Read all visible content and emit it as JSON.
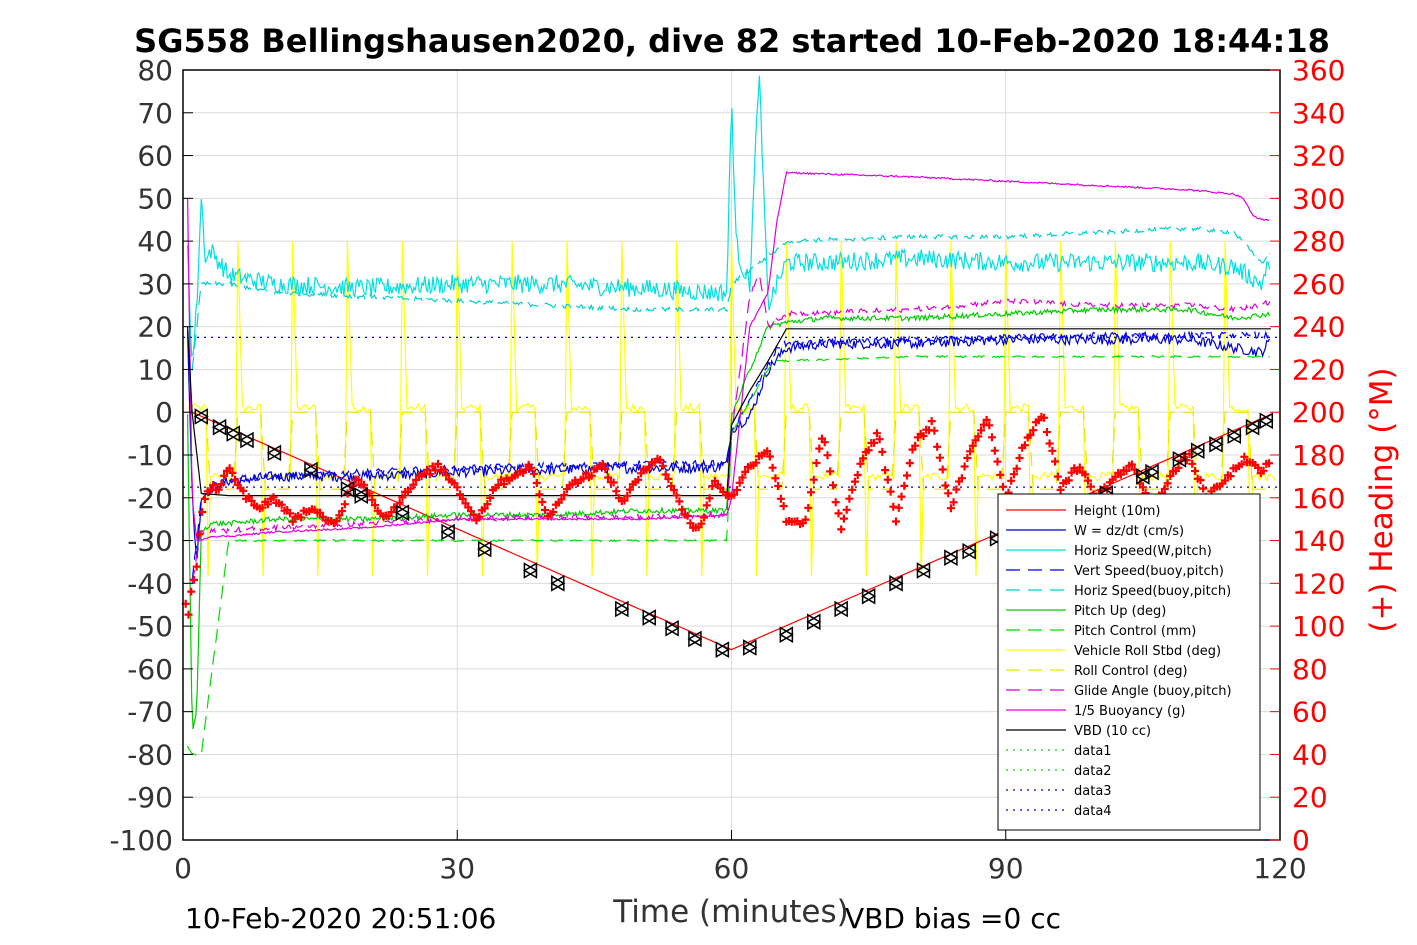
{
  "chart_data": {
    "type": "line",
    "title": "SG558 Bellingshausen2020, dive 82 started 10-Feb-2020 18:44:18",
    "xlabel": "Time (minutes)",
    "ylabel": "",
    "y2label": "(+) Heading (°M)",
    "xlim": [
      0,
      120
    ],
    "ylim": [
      -100,
      80
    ],
    "y2lim": [
      0,
      360
    ],
    "x_ticks": [
      "0",
      "30",
      "60",
      "90",
      "120"
    ],
    "y_ticks": [
      "80",
      "70",
      "60",
      "50",
      "40",
      "30",
      "20",
      "10",
      "0",
      "-10",
      "-20",
      "-30",
      "-40",
      "-50",
      "-60",
      "-70",
      "-80",
      "-90",
      "-100"
    ],
    "y2_ticks": [
      "360",
      "340",
      "320",
      "300",
      "280",
      "260",
      "240",
      "220",
      "200",
      "180",
      "160",
      "140",
      "120",
      "100",
      "80",
      "60",
      "40",
      "20",
      "0"
    ],
    "grid": true,
    "legend_position": "bottom-right",
    "footer_left": "10-Feb-2020 20:51:06",
    "footer_right": "VBD bias =0 cc",
    "colors": {
      "height": "#ff0000",
      "w": "#0000cc",
      "horiz_w": "#00e0e0",
      "vert_buoy": "#0000ff",
      "horiz_buoy": "#00d0d0",
      "pitch": "#00cc00",
      "pitch_ctrl": "#00dd00",
      "roll": "#ffff00",
      "roll_ctrl": "#e6e600",
      "glide": "#dd00dd",
      "buoy": "#e000e0",
      "vbd": "#000000",
      "heading": "#ff0000"
    },
    "series": [
      {
        "key": "height",
        "name": "Height (10m)",
        "style": "solid",
        "color": "#ff0000",
        "x": [
          1,
          60,
          119
        ],
        "y": [
          0,
          -55.5,
          -0.5
        ]
      },
      {
        "key": "w",
        "name": "W = dz/dt (cm/s)",
        "style": "solid",
        "color": "#0000cc",
        "x": [
          0.5,
          1,
          1.5,
          2,
          3,
          5,
          10,
          20,
          30,
          40,
          50,
          58,
          59.5,
          60,
          62,
          64,
          66,
          70,
          80,
          90,
          100,
          110,
          115,
          118,
          119
        ],
        "y": [
          20,
          -20,
          -35,
          -20,
          -18,
          -16,
          -15,
          -15,
          -14,
          -13.5,
          -13,
          -13,
          -12,
          -4,
          -1,
          10,
          15,
          16,
          16,
          17,
          17,
          17,
          15,
          14,
          17
        ]
      },
      {
        "key": "horiz_w",
        "name": "Horiz Speed(W,pitch)",
        "style": "solid",
        "color": "#00e0e0",
        "x": [
          0.5,
          1,
          1.5,
          2,
          2.5,
          3,
          5,
          10,
          20,
          30,
          40,
          50,
          58,
          59.5,
          60,
          60.5,
          61,
          62,
          63,
          64,
          65,
          66,
          70,
          80,
          90,
          100,
          110,
          115,
          118,
          119
        ],
        "y": [
          40,
          10,
          25,
          50,
          35,
          38,
          32,
          30,
          29,
          30,
          30,
          29,
          28,
          28,
          74,
          40,
          35,
          30,
          80,
          25,
          30,
          35,
          35,
          36,
          35,
          35,
          35,
          34,
          30,
          36
        ]
      },
      {
        "key": "vert_buoy",
        "name": "Vert Speed(buoy,pitch)",
        "style": "dash",
        "color": "#0000ff",
        "x": [
          1,
          2,
          5,
          10,
          30,
          50,
          59.5,
          60,
          65,
          66,
          80,
          100,
          119
        ],
        "y": [
          -40,
          -20,
          -16,
          -15,
          -13,
          -12,
          -12,
          -5,
          15,
          16,
          17,
          18,
          18
        ]
      },
      {
        "key": "horiz_buoy",
        "name": "Horiz Speed(buoy,pitch)",
        "style": "dash",
        "color": "#00d0d0",
        "x": [
          1,
          2,
          5,
          10,
          20,
          30,
          40,
          50,
          59.5,
          60,
          65,
          66,
          80,
          90,
          100,
          110,
          115,
          118,
          119
        ],
        "y": [
          10,
          30,
          30,
          28,
          27,
          26,
          25,
          24,
          24,
          30,
          38,
          40,
          41,
          41,
          42,
          43,
          42,
          35,
          37
        ]
      },
      {
        "key": "pitch",
        "name": "Pitch Up (deg)",
        "style": "solid",
        "color": "#00cc00",
        "x": [
          0.5,
          1,
          1.5,
          2,
          3,
          5,
          10,
          20,
          30,
          40,
          50,
          59.5,
          60,
          62,
          64,
          66,
          70,
          80,
          90,
          100,
          110,
          115,
          119
        ],
        "y": [
          0,
          -75,
          -70,
          -28,
          -26,
          -26,
          -25,
          -25,
          -24,
          -24,
          -23,
          -23,
          -1,
          10,
          20,
          21,
          22,
          22,
          23,
          24,
          24,
          22,
          23
        ]
      },
      {
        "key": "pitch_ctrl",
        "name": "Pitch Control (mm)",
        "style": "dash",
        "color": "#00dd00",
        "x": [
          0.5,
          1,
          2,
          5,
          59.5,
          60,
          64,
          65,
          66,
          80,
          100,
          119
        ],
        "y": [
          -78,
          -80,
          -80,
          -30,
          -30,
          -5,
          10,
          12,
          12,
          13,
          13,
          13
        ]
      },
      {
        "key": "roll",
        "name": "Vehicle Roll Stbd (deg)",
        "style": "roll",
        "color": "#ffff00",
        "x": [
          0,
          120
        ],
        "y": [
          0,
          0
        ]
      },
      {
        "key": "roll_ctrl",
        "name": "Roll Control (deg)",
        "style": "dash",
        "color": "#e6e600",
        "x": [
          0,
          120
        ],
        "y": [
          0,
          0
        ]
      },
      {
        "key": "glide",
        "name": "Glide Angle (buoy,pitch)",
        "style": "dash",
        "color": "#dd00dd",
        "x": [
          1,
          2,
          10,
          20,
          30,
          40,
          50,
          59.5,
          60,
          62,
          63,
          64,
          66,
          80,
          90,
          100,
          110,
          115,
          118,
          119
        ],
        "y": [
          -40,
          -28,
          -27,
          -26,
          -25,
          -24.5,
          -24.5,
          -24,
          -5,
          27,
          33,
          20,
          23,
          24,
          26,
          25,
          25,
          24,
          25,
          26
        ]
      },
      {
        "key": "buoy",
        "name": "1/5 Buoyancy (g)",
        "style": "solid",
        "color": "#e000e0",
        "x": [
          0.5,
          1,
          1.5,
          2,
          3,
          5,
          10,
          20,
          30,
          40,
          50,
          59.5,
          60,
          62,
          64,
          65,
          66,
          80,
          90,
          100,
          110,
          115,
          116,
          117,
          118,
          119
        ],
        "y": [
          50,
          -20,
          -30,
          -30,
          -29,
          -29,
          -28,
          -27,
          -25,
          -25,
          -25,
          -24,
          -20,
          20,
          28,
          45,
          56,
          55,
          54,
          53,
          52,
          51,
          50,
          46,
          45,
          45
        ]
      },
      {
        "key": "vbd",
        "name": "VBD (10 cc)",
        "style": "solid",
        "color": "#000000",
        "x": [
          0.5,
          1,
          2,
          5,
          10,
          30,
          59.5,
          60,
          62,
          64,
          66,
          90,
          119
        ],
        "y": [
          20,
          0,
          -19,
          -19.5,
          -19.5,
          -19.5,
          -19.5,
          -3,
          5,
          12,
          19.5,
          19.5,
          19.5
        ]
      },
      {
        "key": "data1",
        "name": "data1",
        "style": "dot",
        "color": "#00cc00",
        "x": [],
        "y": []
      },
      {
        "key": "data2",
        "name": "data2",
        "style": "dot",
        "color": "#00cc00",
        "x": [],
        "y": []
      },
      {
        "key": "data3",
        "name": "data3",
        "style": "dot",
        "color": "#0000cc",
        "x": [
          0,
          120
        ],
        "y": [
          17.5,
          17.5
        ]
      },
      {
        "key": "data4",
        "name": "data4",
        "style": "dot",
        "color": "#0000cc",
        "x": [
          0,
          120
        ],
        "y": [
          -17.5,
          -17.5
        ]
      }
    ],
    "heading": {
      "name": "Heading",
      "axis": "right",
      "x": [
        0.3,
        0.6,
        1.0,
        1.4,
        2.0,
        2.5,
        3,
        4,
        5,
        6,
        8,
        10,
        12,
        14,
        16,
        17,
        18,
        19,
        20,
        22,
        24,
        26,
        28,
        30,
        32,
        33,
        34,
        36,
        38,
        40,
        42,
        44,
        46,
        48,
        50,
        52,
        54,
        56,
        57,
        58,
        60,
        62,
        64,
        66,
        68,
        70,
        72,
        74,
        76,
        78,
        80,
        82,
        84,
        86,
        88,
        90,
        92,
        94,
        96,
        98,
        100,
        102,
        104,
        106,
        108,
        110,
        112,
        114,
        116,
        118,
        119
      ],
      "y": [
        110,
        105,
        120,
        125,
        150,
        160,
        165,
        165,
        175,
        165,
        155,
        160,
        150,
        155,
        148,
        150,
        162,
        170,
        165,
        150,
        160,
        170,
        175,
        165,
        150,
        155,
        165,
        170,
        175,
        150,
        165,
        170,
        175,
        158,
        170,
        180,
        160,
        145,
        150,
        168,
        160,
        175,
        183,
        150,
        148,
        190,
        145,
        175,
        190,
        150,
        185,
        195,
        155,
        180,
        198,
        160,
        185,
        200,
        165,
        175,
        160,
        170,
        175,
        155,
        170,
        180,
        160,
        168,
        178,
        172,
        178
      ]
    },
    "markers": {
      "name": "Height markers",
      "x": [
        2,
        4,
        5.5,
        7,
        10,
        14,
        18,
        19.5,
        24,
        29,
        33,
        38,
        41,
        48,
        51,
        53.5,
        56,
        59,
        62,
        66,
        69,
        72,
        75,
        78,
        81,
        84,
        86,
        89,
        93,
        97,
        101,
        105,
        106,
        109,
        111,
        113,
        115,
        117,
        118.5
      ],
      "y": [
        -1,
        -3.5,
        -5,
        -6.5,
        -9.5,
        -13.5,
        -18,
        -19.5,
        -23.5,
        -28,
        -32,
        -37,
        -40,
        -46,
        -48,
        -50.5,
        -53,
        -55.5,
        -55,
        -52,
        -49,
        -46,
        -43,
        -40,
        -37,
        -34,
        -32.5,
        -29.5,
        -26,
        -22.5,
        -19,
        -15,
        -14,
        -11,
        -9,
        -7.5,
        -5.5,
        -3.5,
        -2
      ]
    }
  }
}
